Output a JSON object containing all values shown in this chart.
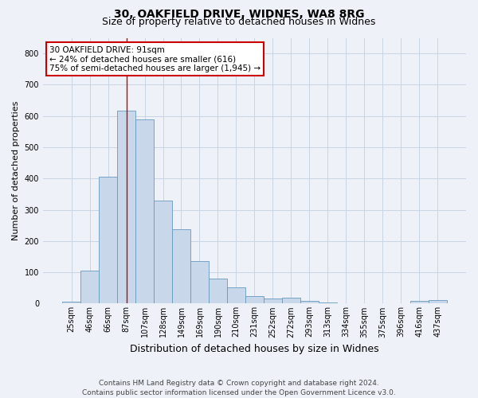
{
  "title1": "30, OAKFIELD DRIVE, WIDNES, WA8 8RG",
  "title2": "Size of property relative to detached houses in Widnes",
  "xlabel": "Distribution of detached houses by size in Widnes",
  "ylabel": "Number of detached properties",
  "footnote": "Contains HM Land Registry data © Crown copyright and database right 2024.\nContains public sector information licensed under the Open Government Licence v3.0.",
  "bin_labels": [
    "25sqm",
    "46sqm",
    "66sqm",
    "87sqm",
    "107sqm",
    "128sqm",
    "149sqm",
    "169sqm",
    "190sqm",
    "210sqm",
    "231sqm",
    "252sqm",
    "272sqm",
    "293sqm",
    "313sqm",
    "334sqm",
    "355sqm",
    "375sqm",
    "396sqm",
    "416sqm",
    "437sqm"
  ],
  "bar_values": [
    7,
    106,
    405,
    616,
    590,
    330,
    238,
    136,
    79,
    51,
    24,
    15,
    18,
    8,
    4,
    2,
    0,
    0,
    0,
    8,
    10
  ],
  "bar_color": "#c8d8ea",
  "bar_edge_color": "#6699bb",
  "red_line_index": 3,
  "annotation_text": "30 OAKFIELD DRIVE: 91sqm\n← 24% of detached houses are smaller (616)\n75% of semi-detached houses are larger (1,945) →",
  "annotation_box_color": "#ffffff",
  "annotation_box_edge_color": "#cc0000",
  "ylim": [
    0,
    850
  ],
  "yticks": [
    0,
    100,
    200,
    300,
    400,
    500,
    600,
    700,
    800
  ],
  "grid_color": "#c8d4e4",
  "background_color": "#eef2f8",
  "title1_fontsize": 10,
  "title2_fontsize": 9,
  "ylabel_fontsize": 8,
  "xlabel_fontsize": 9,
  "tick_fontsize": 7,
  "footnote_fontsize": 6.5,
  "annotation_fontsize": 7.5
}
